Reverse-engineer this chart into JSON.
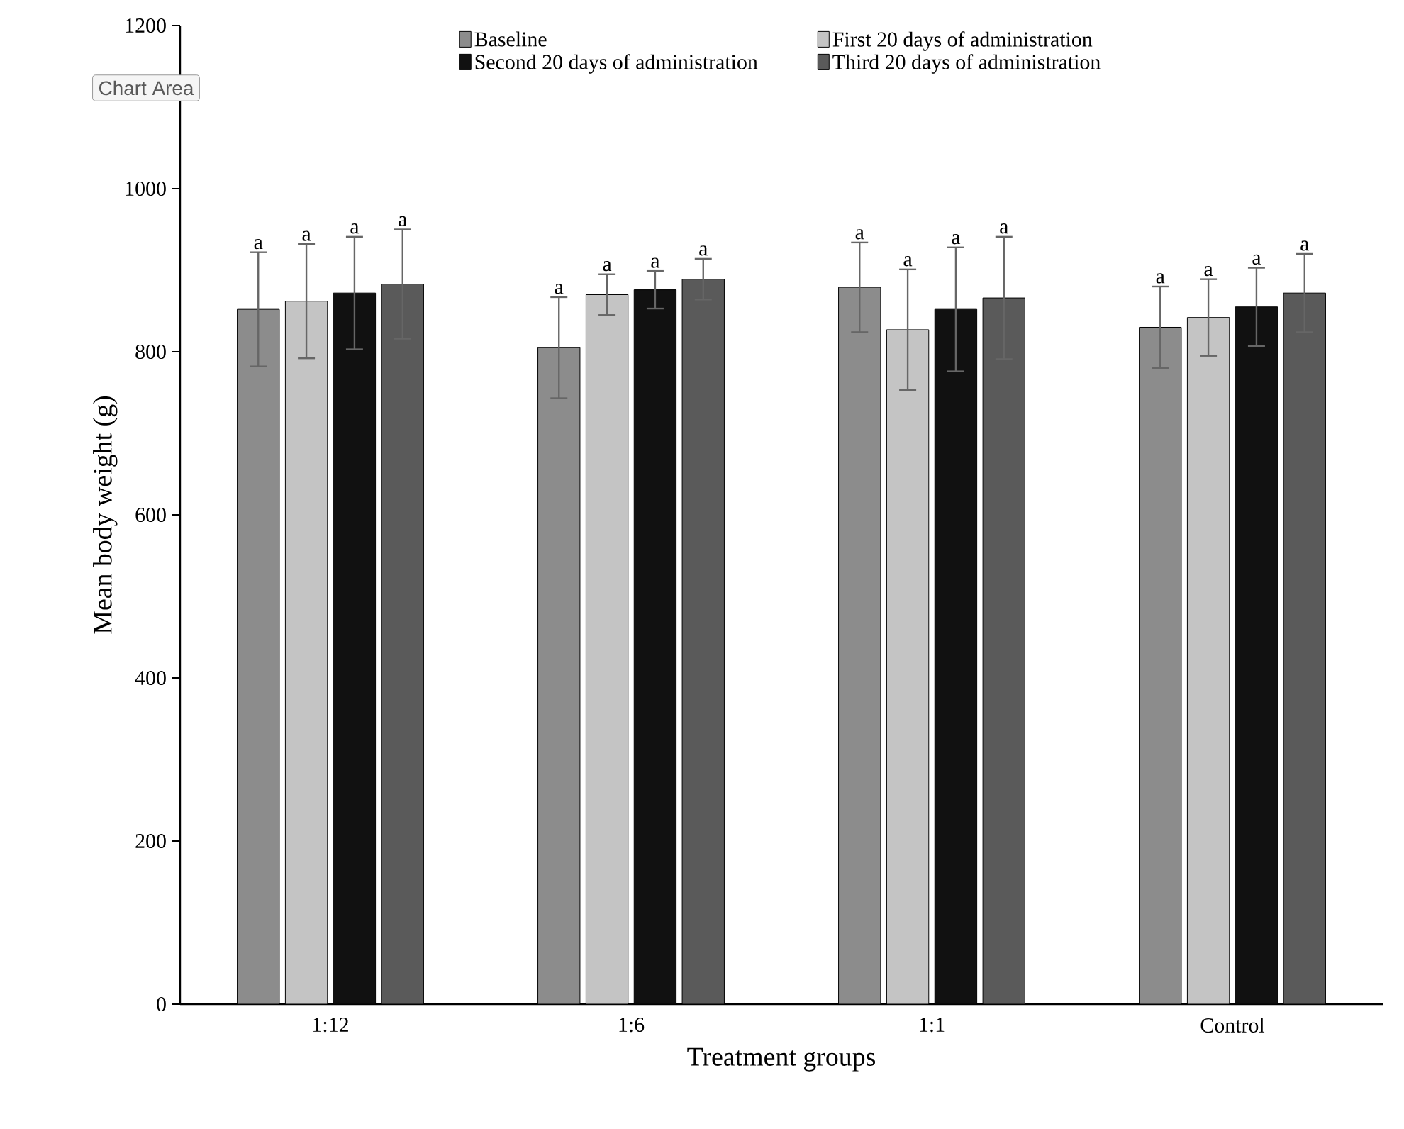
{
  "chart_data": {
    "type": "bar",
    "xlabel": "Treatment groups",
    "ylabel": "Mean body weight  (g)",
    "categories": [
      "1:12",
      "1:6",
      "1:1",
      "Control"
    ],
    "series": [
      {
        "name": "Baseline",
        "color": "#8c8c8c",
        "values": [
          852,
          805,
          879,
          830
        ],
        "errors": [
          70,
          62,
          55,
          50
        ]
      },
      {
        "name": "First 20 days of administration",
        "color": "#c4c4c4",
        "values": [
          862,
          870,
          827,
          842
        ],
        "errors": [
          70,
          25,
          74,
          47
        ]
      },
      {
        "name": "Second 20 days of administration",
        "color": "#111111",
        "values": [
          872,
          876,
          852,
          855
        ],
        "errors": [
          69,
          23,
          76,
          48
        ]
      },
      {
        "name": "Third 20 days of administration",
        "color": "#5a5a5a",
        "values": [
          883,
          889,
          866,
          872
        ],
        "errors": [
          67,
          25,
          75,
          48
        ]
      }
    ],
    "ylim": [
      0,
      1200
    ],
    "yticks": [
      0,
      200,
      400,
      600,
      800,
      1000,
      1200
    ],
    "grid": false,
    "legend": "top",
    "annotations": [
      "Chart Area",
      "a",
      "a",
      "a",
      "a",
      "a",
      "a",
      "a",
      "a",
      "a",
      "a",
      "a",
      "a",
      "a",
      "a",
      "a",
      "a"
    ]
  }
}
